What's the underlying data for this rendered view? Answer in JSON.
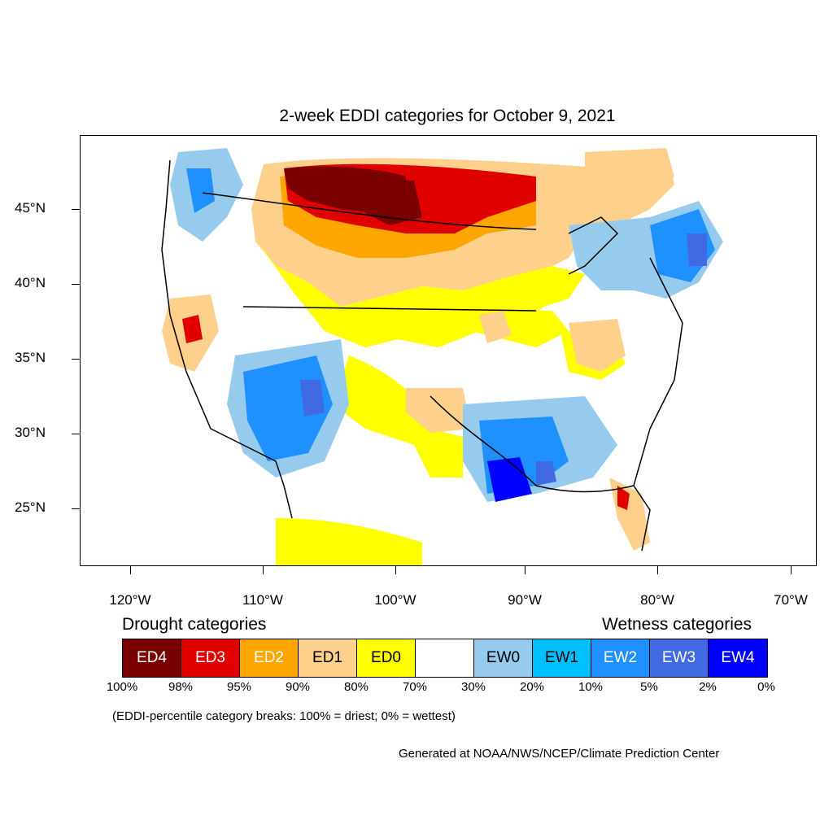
{
  "title": "2-week EDDI categories for October 9, 2021",
  "axes": {
    "lat_labels": [
      "45°N",
      "40°N",
      "35°N",
      "30°N",
      "25°N"
    ],
    "lon_labels": [
      "120°W",
      "110°W",
      "100°W",
      "90°W",
      "80°W",
      "70°W"
    ]
  },
  "legend": {
    "drought_heading": "Drought categories",
    "wetness_heading": "Wetness categories",
    "categories": [
      {
        "label": "ED4",
        "color": "#7a0000",
        "text_color": "#ffffff"
      },
      {
        "label": "ED3",
        "color": "#e00000",
        "text_color": "#ffffff"
      },
      {
        "label": "ED2",
        "color": "#ffa500",
        "text_color": "#ffffff"
      },
      {
        "label": "ED1",
        "color": "#fdd08c",
        "text_color": "#000000"
      },
      {
        "label": "ED0",
        "color": "#ffff00",
        "text_color": "#000000"
      },
      {
        "label": "",
        "color": "#ffffff",
        "text_color": "#000000"
      },
      {
        "label": "EW0",
        "color": "#96cbee",
        "text_color": "#000000"
      },
      {
        "label": "EW1",
        "color": "#00bfff",
        "text_color": "#000000"
      },
      {
        "label": "EW2",
        "color": "#1e90ff",
        "text_color": "#ffffff"
      },
      {
        "label": "EW3",
        "color": "#4169e1",
        "text_color": "#ffffff"
      },
      {
        "label": "EW4",
        "color": "#0000ff",
        "text_color": "#ffffff"
      }
    ],
    "breaks": [
      "100%",
      "98%",
      "95%",
      "90%",
      "80%",
      "70%",
      "30%",
      "20%",
      "10%",
      "5%",
      "2%",
      "0%"
    ],
    "note": "(EDDI-percentile category breaks: 100% = driest; 0% = wettest)"
  },
  "credit": "Generated at NOAA/NWS/NCEP/Climate Prediction Center"
}
